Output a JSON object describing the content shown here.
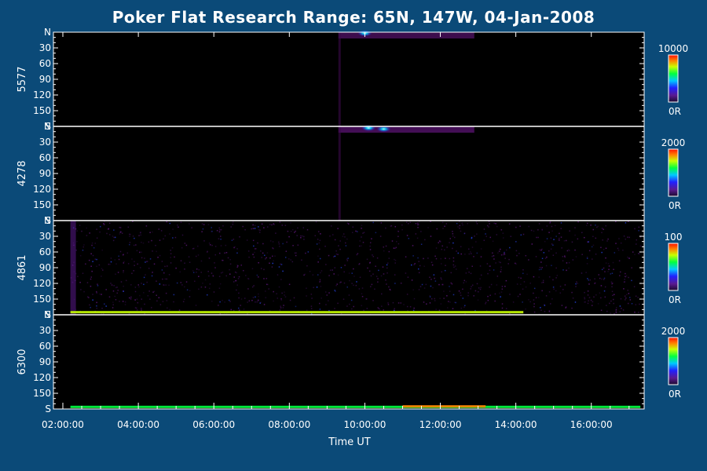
{
  "colors": {
    "background": "#0b4a78",
    "plot_background": "#000000",
    "axis": "#ffffff",
    "colorbar": [
      "#1a0a2e",
      "#5a1a90",
      "#2020ff",
      "#00c8ff",
      "#00ff40",
      "#c8ff00",
      "#ff8000",
      "#ff1000"
    ]
  },
  "chart_data": {
    "type": "heatmap",
    "title": "Poker Flat Research Range: 65N, 147W, 04-Jan-2008",
    "xlabel": "Time UT",
    "x_ticks": [
      "02:00:00",
      "04:00:00",
      "06:00:00",
      "08:00:00",
      "10:00:00",
      "12:00:00",
      "14:00:00",
      "16:00:00"
    ],
    "x_tick_hours": [
      2,
      4,
      6,
      8,
      10,
      12,
      14,
      16
    ],
    "xlim_hours": [
      1.75,
      17.4
    ],
    "y_ticks": [
      "N",
      "30",
      "60",
      "90",
      "120",
      "150",
      "S"
    ],
    "ylim_deg": [
      0,
      180
    ],
    "grid": false,
    "panels": [
      {
        "name": "5577",
        "colorbar_max": "10000",
        "colorbar_min": "0R",
        "features": [
          {
            "kind": "arc",
            "t_start": 9.3,
            "t_end": 12.9,
            "deg_start": 0,
            "deg_end": 12,
            "level": 0.5
          },
          {
            "kind": "spot",
            "t": 10.0,
            "deg": 2,
            "level": 0.9
          }
        ]
      },
      {
        "name": "4278",
        "colorbar_max": "2000",
        "colorbar_min": "0R",
        "features": [
          {
            "kind": "arc",
            "t_start": 9.3,
            "t_end": 12.9,
            "deg_start": 0,
            "deg_end": 12,
            "level": 0.55
          },
          {
            "kind": "spot",
            "t": 10.1,
            "deg": 3,
            "level": 0.95
          },
          {
            "kind": "spot",
            "t": 10.5,
            "deg": 5,
            "level": 0.9
          }
        ]
      },
      {
        "name": "4861",
        "colorbar_max": "100",
        "colorbar_min": "0R",
        "features": [
          {
            "kind": "noise",
            "t_start": 2.2,
            "t_end": 17.3,
            "level": 0.35
          },
          {
            "kind": "band",
            "t_start": 2.2,
            "t_end": 14.2,
            "deg": 175,
            "level": 0.7
          }
        ]
      },
      {
        "name": "6300",
        "colorbar_max": "2000",
        "colorbar_min": "0R",
        "features": [
          {
            "kind": "band",
            "t_start": 2.2,
            "t_end": 17.3,
            "deg": 176,
            "level": 0.55
          },
          {
            "kind": "band",
            "t_start": 11.0,
            "t_end": 13.2,
            "deg": 175,
            "level": 0.85
          }
        ]
      }
    ]
  }
}
